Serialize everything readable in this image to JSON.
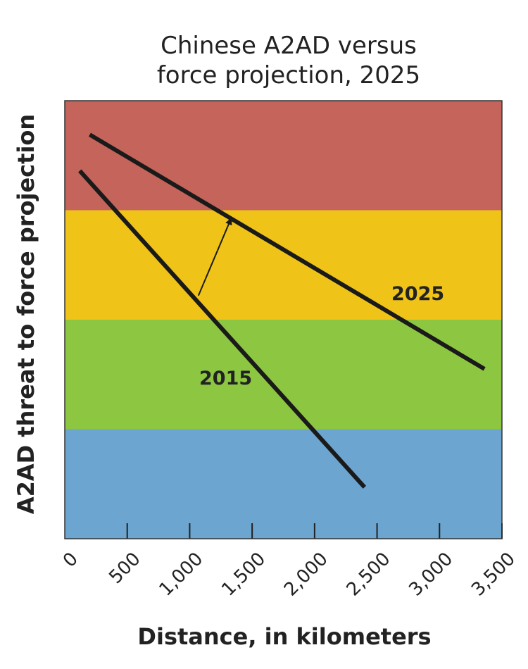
{
  "chart_data": {
    "type": "line",
    "title_lines": [
      "Chinese A2AD versus",
      "force projection, 2025"
    ],
    "xlabel": "Distance, in kilometers",
    "ylabel": "A2AD threat to force projection",
    "xlim": [
      0,
      3500
    ],
    "x_ticks": [
      0,
      500,
      1000,
      1500,
      2000,
      2500,
      3000,
      3500
    ],
    "x_tick_labels": [
      "0",
      "500",
      "1,000",
      "1,500",
      "2,000",
      "2,500",
      "3,000",
      "3,500"
    ],
    "ylim": [
      0,
      4
    ],
    "y_ticks_shown": false,
    "grid": false,
    "bands": [
      {
        "from": 3,
        "to": 4,
        "color": "#c4645a"
      },
      {
        "from": 2,
        "to": 3,
        "color": "#efc318"
      },
      {
        "from": 1,
        "to": 2,
        "color": "#8dc641"
      },
      {
        "from": 0,
        "to": 1,
        "color": "#6ca5cf"
      }
    ],
    "series": [
      {
        "name": "2015",
        "x": [
          120,
          2400
        ],
        "y": [
          3.36,
          0.47
        ],
        "color": "#1a1a1a"
      },
      {
        "name": "2025",
        "x": [
          200,
          3360
        ],
        "y": [
          3.69,
          1.55
        ],
        "color": "#1a1a1a"
      }
    ],
    "annotations": [
      {
        "type": "arrow",
        "from": [
          1070,
          2.22
        ],
        "to": [
          1330,
          2.92
        ]
      }
    ]
  }
}
